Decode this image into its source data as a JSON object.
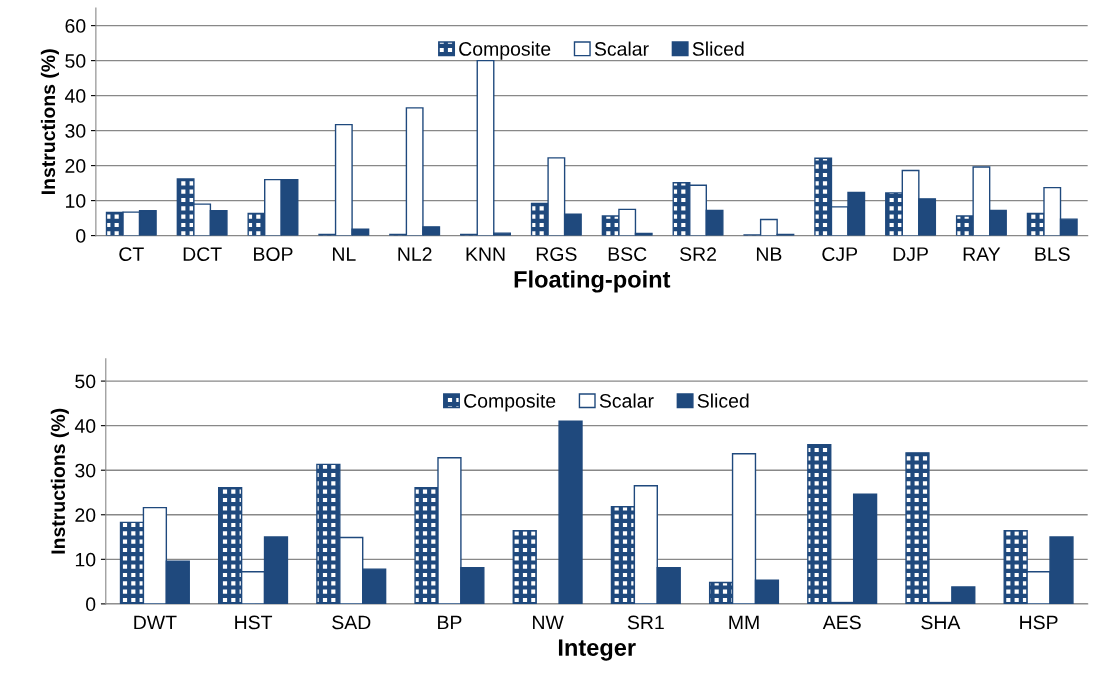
{
  "chart_data": [
    {
      "type": "bar",
      "xlabel": "Floating-point",
      "ylabel": "Instructions (%)",
      "categories": [
        "CT",
        "DCT",
        "BOP",
        "NL",
        "NL2",
        "KNN",
        "RGS",
        "BSC",
        "SR2",
        "NB",
        "CJP",
        "DJP",
        "RAY",
        "BLS"
      ],
      "series": [
        {
          "name": "Composite",
          "color": "#1f497d",
          "values": [
            6.6,
            16.2,
            6.3,
            0.3,
            0.3,
            0.3,
            9.2,
            5.6,
            15.1,
            0.2,
            22.1,
            12.2,
            5.6,
            6.3
          ]
        },
        {
          "name": "Scalar",
          "color": "#ffffff",
          "values": [
            6.7,
            9,
            16,
            31.7,
            36.5,
            50,
            22.2,
            7.5,
            14.4,
            4.6,
            8.2,
            18.6,
            19.6,
            13.7
          ]
        },
        {
          "name": "Sliced",
          "color": "#1f497d",
          "values": [
            7.1,
            7.1,
            16,
            1.8,
            2.5,
            0.7,
            6.1,
            0.6,
            7.2,
            0.3,
            12.3,
            10.5,
            7.2,
            4.7
          ]
        }
      ],
      "ylim": [
        0,
        65
      ],
      "yticks": [
        0,
        10,
        20,
        30,
        40,
        50,
        60
      ],
      "grid": "y",
      "legend": "top"
    },
    {
      "type": "bar",
      "xlabel": "Integer",
      "ylabel": "Instructions (%)",
      "categories": [
        "DWT",
        "HST",
        "SAD",
        "BP",
        "NW",
        "SR1",
        "MM",
        "AES",
        "SHA",
        "HSP"
      ],
      "series": [
        {
          "name": "Composite",
          "color": "#1f497d",
          "values": [
            18.3,
            26.1,
            31.3,
            26.1,
            16.4,
            21.8,
            4.8,
            35.7,
            33.9,
            16.4
          ]
        },
        {
          "name": "Scalar",
          "color": "#ffffff",
          "values": [
            21.6,
            7.2,
            14.9,
            32.8,
            null,
            26.5,
            33.7,
            0.3,
            0.3,
            7.2
          ]
        },
        {
          "name": "Sliced",
          "color": "#1f497d",
          "values": [
            9.6,
            15,
            7.8,
            8.1,
            41,
            8.1,
            5.3,
            24.6,
            3.8,
            15
          ]
        }
      ],
      "ylim": [
        0,
        55
      ],
      "yticks": [
        0,
        10,
        20,
        30,
        40,
        50
      ],
      "grid": "y",
      "legend": "top"
    }
  ]
}
